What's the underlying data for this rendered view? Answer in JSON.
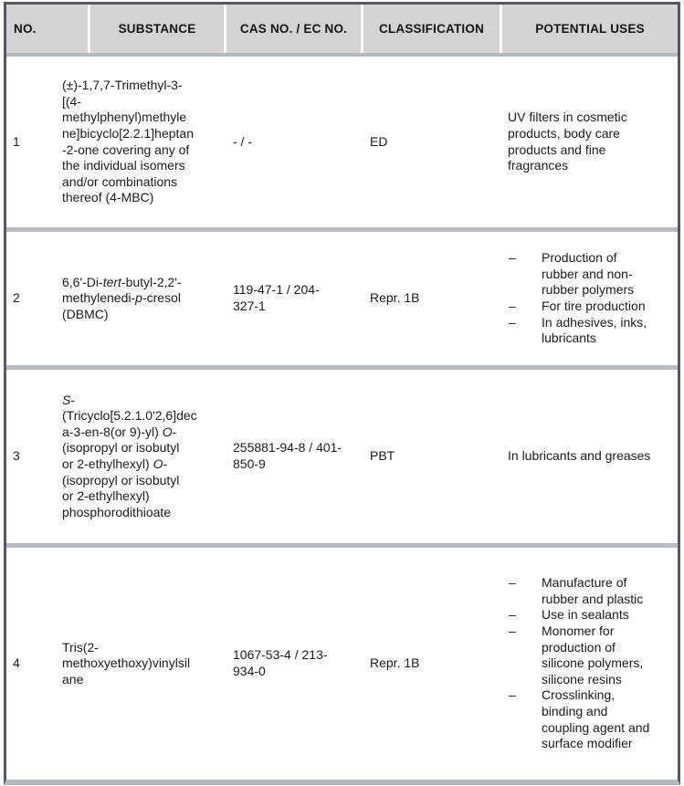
{
  "header": {
    "columns": [
      "NO.",
      "SUBSTANCE",
      "CAS NO. / EC NO.",
      "CLASSIFICATION",
      "POTENTIAL USES"
    ]
  },
  "bullet_char": "–",
  "colors": {
    "header_bg": "#d2d3d6",
    "row_separator": "#b8bbc2",
    "outer_border": "#55575e",
    "text": "#1b1b1d"
  },
  "rows": [
    {
      "no": "1",
      "substance": [
        {
          "t": "(±)-1,7,7-Trimethyl-3-\n[(4-\nmethylphenyl)methyle\nne]bicyclo[2.2.1]heptan\n-2-one covering any of\nthe individual isomers\nand/or combinations\nthereof (4-MBC)"
        }
      ],
      "cas": "- / -",
      "classification": "ED",
      "uses_text": "UV filters in cosmetic\nproducts, body care\nproducts and fine\nfragrances"
    },
    {
      "no": "2",
      "substance": [
        {
          "t": "6,6'-Di-"
        },
        {
          "t": "tert",
          "i": true
        },
        {
          "t": "-butyl-2,2'-\nmethylenedi-"
        },
        {
          "t": "p",
          "i": true
        },
        {
          "t": "-cresol\n(DBMC)"
        }
      ],
      "cas": "119-47-1 / 204-\n327-1",
      "classification": "Repr. 1B",
      "uses_list": [
        "Production of\nrubber and non-\nrubber polymers",
        "For tire production",
        "In adhesives, inks,\nlubricants"
      ]
    },
    {
      "no": "3",
      "substance": [
        {
          "t": "S",
          "i": true
        },
        {
          "t": "-\n(Tricyclo[5.2.1.0'2,6]dec\na-3-en-8(or 9)-yl) "
        },
        {
          "t": "O",
          "i": true
        },
        {
          "t": "-\n(isopropyl or isobutyl\nor 2-ethylhexyl) "
        },
        {
          "t": "O",
          "i": true
        },
        {
          "t": "-\n(isopropyl or isobutyl\nor 2-ethylhexyl)\nphosphorodithioate"
        }
      ],
      "cas": "255881-94-8 / 401-\n850-9",
      "classification": "PBT",
      "uses_text": "In lubricants and greases"
    },
    {
      "no": "4",
      "substance": [
        {
          "t": "Tris(2-\nmethoxyethoxy)vinylsil\nane"
        }
      ],
      "cas": "1067-53-4 / 213-\n934-0",
      "classification": "Repr. 1B",
      "uses_list": [
        "Manufacture of\nrubber and plastic",
        "Use in sealants",
        "Monomer for\nproduction of\nsilicone polymers,\nsilicone resins",
        "Crosslinking,\nbinding and\ncoupling agent and\nsurface modifier"
      ]
    }
  ]
}
